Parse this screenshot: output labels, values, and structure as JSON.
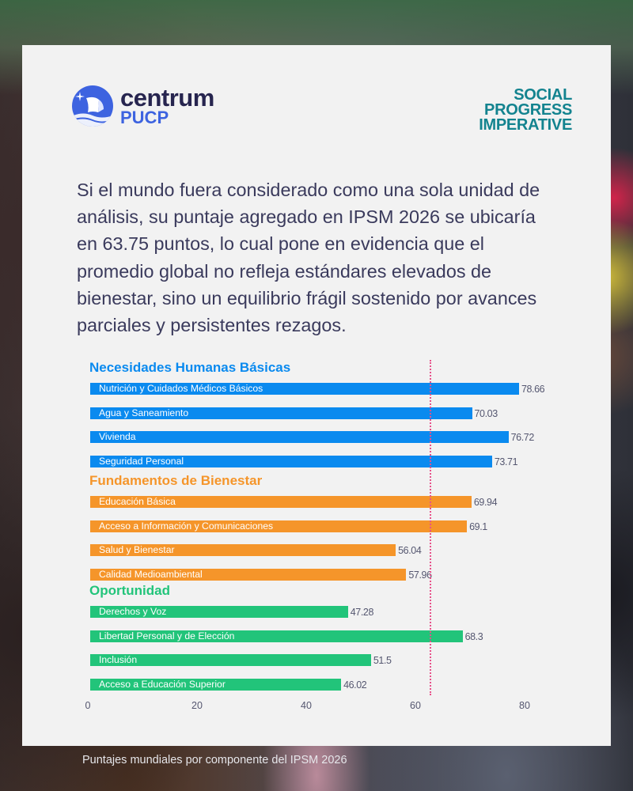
{
  "logos": {
    "centrum": {
      "line1": "centrum",
      "line2": "PUCP",
      "icon": "ship-icon"
    },
    "social_progress": {
      "lines": [
        "SOCIAL",
        "PROGRESS",
        "IMPERATIVE"
      ]
    }
  },
  "intro_text": "Si el mundo fuera considerado como una sola unidad de análisis, su puntaje agregado en IPSM 2026 se ubicaría en 63.75 puntos, lo cual pone en evidencia que el promedio global no refleja estándares elevados de bienestar, sino un equilibrio frágil sostenido por avances parciales y persistentes rezagos.",
  "caption": "Puntajes mundiales por componente del IPSM 2026",
  "colors": {
    "necesidades": "#0a8aef",
    "fundamentos": "#f5952a",
    "oportunidad": "#22c47a",
    "reference_line": "#e8508a"
  },
  "chart_data": {
    "type": "bar",
    "orientation": "horizontal",
    "title": "Puntajes mundiales por componente del IPSM 2026",
    "xlabel": "",
    "ylabel": "",
    "xlim": [
      0,
      80
    ],
    "x_ticks": [
      "0",
      "20",
      "40",
      "60",
      "80"
    ],
    "grid": false,
    "reference_line": {
      "value": 62.4,
      "style": "dotted"
    },
    "groups": [
      {
        "name": "Necesidades Humanas Básicas",
        "color_key": "necesidades",
        "items": [
          {
            "label": "Nutrición y Cuidados Médicos Básicos",
            "value": 78.66,
            "value_label": "78.66"
          },
          {
            "label": "Agua y Saneamiento",
            "value": 70.03,
            "value_label": "70.03"
          },
          {
            "label": "Vivienda",
            "value": 76.72,
            "value_label": "76.72"
          },
          {
            "label": "Seguridad Personal",
            "value": 73.71,
            "value_label": "73.71"
          }
        ]
      },
      {
        "name": "Fundamentos de Bienestar",
        "color_key": "fundamentos",
        "items": [
          {
            "label": "Educación Básica",
            "value": 69.94,
            "value_label": "69.94"
          },
          {
            "label": "Acceso a Información y Comunicaciones",
            "value": 69.1,
            "value_label": "69.1"
          },
          {
            "label": "Salud y Bienestar",
            "value": 56.04,
            "value_label": "56.04"
          },
          {
            "label": "Calidad Medioambiental",
            "value": 57.96,
            "value_label": "57.96"
          }
        ]
      },
      {
        "name": "Oportunidad",
        "color_key": "oportunidad",
        "items": [
          {
            "label": "Derechos y Voz",
            "value": 47.28,
            "value_label": "47.28"
          },
          {
            "label": "Libertad Personal y de Elección",
            "value": 68.3,
            "value_label": "68.3"
          },
          {
            "label": "Inclusión",
            "value": 51.5,
            "value_label": "51.5"
          },
          {
            "label": "Acceso a Educación Superior",
            "value": 46.02,
            "value_label": "46.02"
          }
        ]
      }
    ]
  }
}
